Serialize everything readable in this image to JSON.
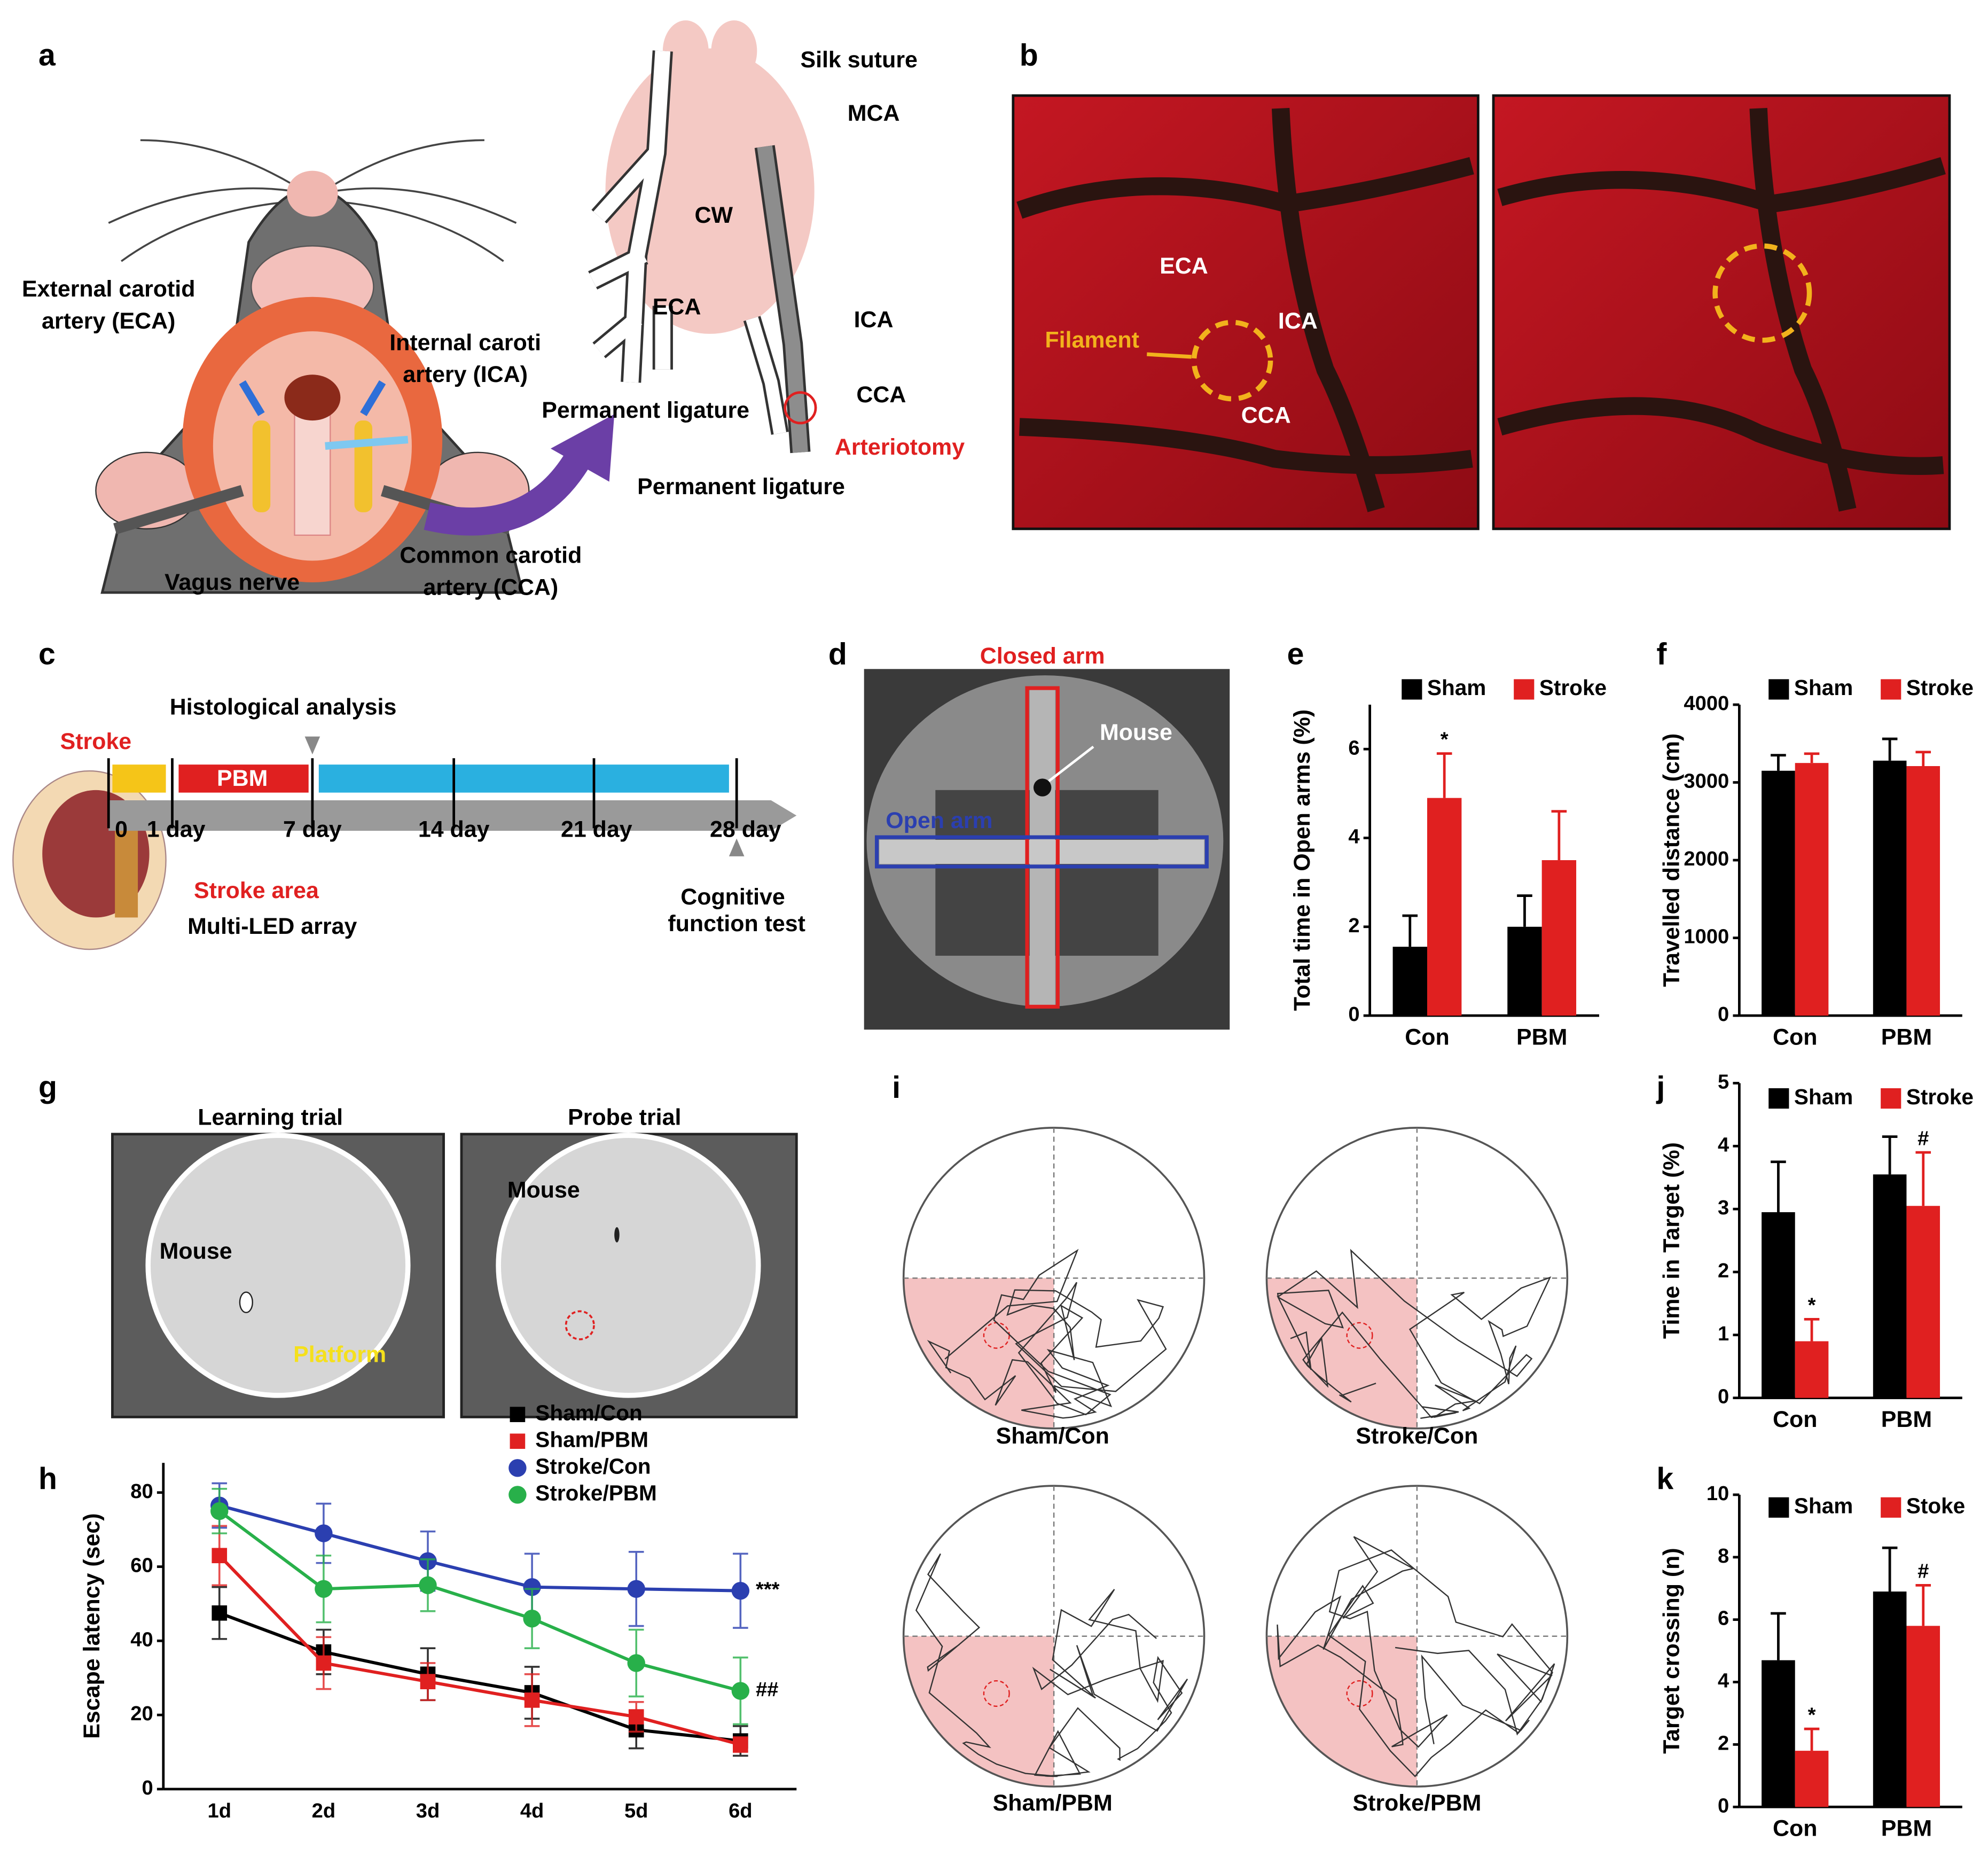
{
  "panel_labels": [
    "a",
    "b",
    "c",
    "d",
    "e",
    "f",
    "g",
    "h",
    "i",
    "j",
    "k"
  ],
  "panel_a": {
    "mouse_labels": [
      "External carotid",
      "artery (ECA)",
      "Internal caroti",
      "artery (ICA)",
      "Vagus nerve",
      "Common carotid",
      "artery (CCA)"
    ],
    "brain_labels": [
      "Silk suture",
      "MCA",
      "CW",
      "ECA",
      "ICA",
      "CCA",
      "Permanent ligature",
      "Arteriotomy",
      "Permanent ligature"
    ]
  },
  "panel_b": {
    "labels": [
      "ECA",
      "ICA",
      "Filament",
      "CCA"
    ]
  },
  "panel_c": {
    "labels": [
      "Stroke",
      "Histological analysis",
      "PBM",
      "Stroke area",
      "Multi-LED array",
      "Cognitive",
      "function test"
    ],
    "timeline": [
      "0",
      "1 day",
      "7 day",
      "14 day",
      "21 day",
      "28 day"
    ]
  },
  "panel_d": {
    "labels": [
      "Closed arm",
      "Mouse",
      "Open arm"
    ]
  },
  "panel_g": {
    "titles": [
      "Learning trial",
      "Probe trial"
    ],
    "labels": [
      "Mouse",
      "Platform",
      "Mouse"
    ]
  },
  "panel_i": {
    "labels": [
      "Sham/Con",
      "Stroke/Con",
      "Sham/PBM",
      "Stroke/PBM"
    ]
  },
  "chart_data": [
    {
      "type": "bar",
      "ylabel": "Total time in Open arms (%)",
      "categories": [
        "Con",
        "PBM"
      ],
      "series": [
        {
          "name": "Sham",
          "color": "#000000",
          "values": [
            1.55,
            2.0
          ],
          "errors": [
            0.7,
            0.7
          ]
        },
        {
          "name": "Stroke",
          "color": "#e02020",
          "values": [
            4.9,
            3.5
          ],
          "errors": [
            1.0,
            1.1
          ]
        }
      ],
      "ylim": [
        0,
        7
      ],
      "yticks": [
        0,
        2,
        4,
        6
      ],
      "annotations": [
        "*"
      ]
    },
    {
      "type": "bar",
      "ylabel": "Travelled distance (cm)",
      "categories": [
        "Con",
        "PBM"
      ],
      "series": [
        {
          "name": "Sham",
          "color": "#000000",
          "values": [
            3150,
            3280
          ],
          "errors": [
            200,
            280
          ]
        },
        {
          "name": "Stroke",
          "color": "#e02020",
          "values": [
            3250,
            3210
          ],
          "errors": [
            120,
            180
          ]
        }
      ],
      "ylim": [
        0,
        4000
      ],
      "yticks": [
        0,
        1000,
        2000,
        3000,
        4000
      ],
      "annotations": []
    },
    {
      "type": "line",
      "ylabel": "Escape latency (sec)",
      "categories": [
        "1d",
        "2d",
        "3d",
        "4d",
        "5d",
        "6d"
      ],
      "series": [
        {
          "name": "Sham/Con",
          "color": "#000000",
          "marker": "square",
          "values": [
            47.5,
            37,
            31,
            26,
            16,
            13
          ],
          "errors": [
            7,
            6,
            7,
            7,
            5,
            4
          ]
        },
        {
          "name": "Sham/PBM",
          "color": "#e02020",
          "marker": "square",
          "values": [
            63,
            34,
            29,
            24,
            19.5,
            12
          ],
          "errors": [
            8,
            7,
            5,
            7,
            4,
            2
          ]
        },
        {
          "name": "Stroke/Con",
          "color": "#2b3fb0",
          "marker": "circle",
          "values": [
            76.5,
            69,
            61.5,
            54.5,
            54,
            53.5
          ],
          "errors": [
            6,
            8,
            8,
            9,
            10,
            10
          ]
        },
        {
          "name": "Stroke/PBM",
          "color": "#28b04a",
          "marker": "circle",
          "values": [
            75,
            54,
            55,
            46,
            34,
            26.5
          ],
          "errors": [
            6,
            9,
            7,
            8,
            9,
            9
          ]
        }
      ],
      "ylim": [
        0,
        88
      ],
      "yticks": [
        0,
        20,
        40,
        60,
        80
      ],
      "annotations": [
        "***",
        "##"
      ]
    },
    {
      "type": "bar",
      "ylabel": "Time in Target (%)",
      "categories": [
        "Con",
        "PBM"
      ],
      "series": [
        {
          "name": "Sham",
          "color": "#000000",
          "values": [
            2.95,
            3.55
          ],
          "errors": [
            0.8,
            0.6
          ]
        },
        {
          "name": "Stroke",
          "color": "#e02020",
          "values": [
            0.9,
            3.05
          ],
          "errors": [
            0.35,
            0.85
          ]
        }
      ],
      "ylim": [
        0,
        5
      ],
      "yticks": [
        0,
        1,
        2,
        3,
        4,
        5
      ],
      "annotations": [
        "*",
        "#"
      ]
    },
    {
      "type": "bar",
      "ylabel": "Target crossing (n)",
      "categories": [
        "Con",
        "PBM"
      ],
      "series": [
        {
          "name": "Sham",
          "color": "#000000",
          "values": [
            4.7,
            6.9
          ],
          "errors": [
            1.5,
            1.4
          ]
        },
        {
          "name": "Stoke",
          "color": "#e02020",
          "values": [
            1.8,
            5.8
          ],
          "errors": [
            0.7,
            1.3
          ]
        }
      ],
      "ylim": [
        0,
        10
      ],
      "yticks": [
        0,
        2,
        4,
        6,
        8,
        10
      ],
      "annotations": [
        "*",
        "#"
      ]
    }
  ]
}
